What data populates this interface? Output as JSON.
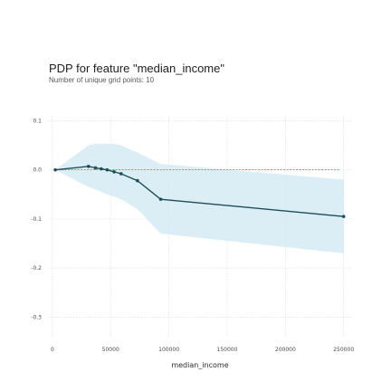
{
  "title": "PDP for feature \"median_income\"",
  "subtitle": "Number of unique grid points: 10",
  "chart_data": {
    "type": "line",
    "title": "PDP for feature \"median_income\"",
    "subtitle": "Number of unique grid points: 10",
    "xlabel": "median_income",
    "ylabel": "",
    "xlim": [
      -3000,
      258000
    ],
    "ylim": [
      -0.34,
      0.11
    ],
    "xticks": [
      0,
      50000,
      100000,
      150000,
      200000,
      250000
    ],
    "yticks": [
      0.1,
      0.0,
      -0.1,
      -0.2,
      -0.3
    ],
    "x_tick_labels": [
      "0",
      "50000",
      "100000",
      "150000",
      "200000",
      "250000"
    ],
    "y_tick_labels": [
      "0.1",
      "0.0",
      "-0.1",
      "-0.2",
      "-0.3"
    ],
    "grid": true,
    "series": [
      {
        "x": [
          2500,
          31000,
          37000,
          42000,
          47000,
          53000,
          59000,
          73000,
          93000,
          250000
        ],
        "y": [
          0.0,
          0.007,
          0.004,
          0.002,
          0.0,
          -0.004,
          -0.008,
          -0.022,
          -0.06,
          -0.095
        ],
        "band_upper": [
          0.0,
          0.05,
          0.053,
          0.053,
          0.053,
          0.053,
          0.05,
          0.035,
          0.012,
          -0.02
        ],
        "band_lower": [
          0.0,
          -0.035,
          -0.04,
          -0.045,
          -0.05,
          -0.055,
          -0.06,
          -0.08,
          -0.13,
          -0.17
        ]
      }
    ],
    "reference_line_y": 0.0,
    "colors": {
      "line": "#1f4e5a",
      "band": "#cfe8f3",
      "reference": "#d9534f",
      "grid": "#d9d9d9"
    }
  }
}
